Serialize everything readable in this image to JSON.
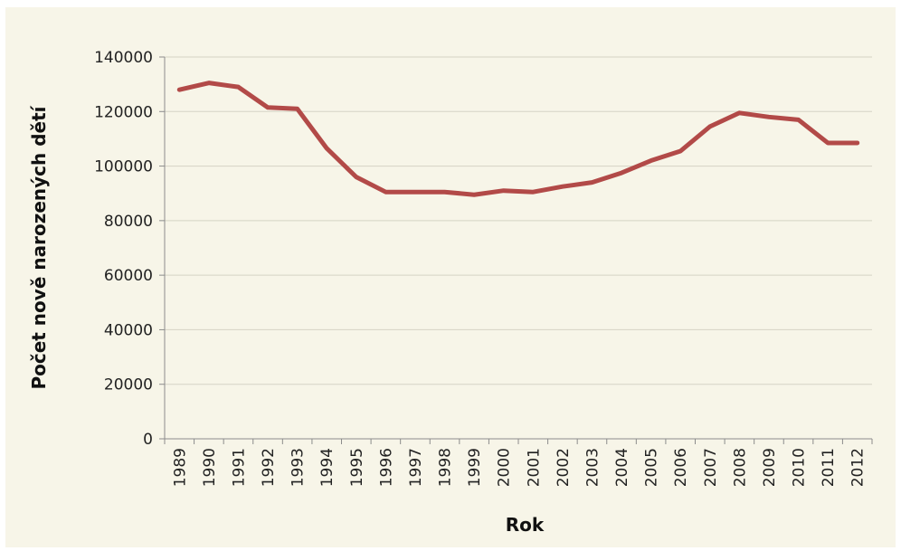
{
  "chart_data": {
    "type": "line",
    "title": "",
    "xlabel": "Rok",
    "ylabel": "Počet nově narozených dětí",
    "x": [
      1989,
      1990,
      1991,
      1992,
      1993,
      1994,
      1995,
      1996,
      1997,
      1998,
      1999,
      2000,
      2001,
      2002,
      2003,
      2004,
      2005,
      2006,
      2007,
      2008,
      2009,
      2010,
      2011,
      2012
    ],
    "categories": [
      "1989",
      "1990",
      "1991",
      "1992",
      "1993",
      "1994",
      "1995",
      "1996",
      "1997",
      "1998",
      "1999",
      "2000",
      "2001",
      "2002",
      "2003",
      "2004",
      "2005",
      "2006",
      "2007",
      "2008",
      "2009",
      "2010",
      "2011",
      "2012"
    ],
    "series": [
      {
        "values": [
          128000,
          130500,
          129000,
          121500,
          121000,
          106500,
          96000,
          90500,
          90500,
          90500,
          89500,
          91000,
          90500,
          92500,
          94000,
          97500,
          102000,
          105500,
          114500,
          119500,
          118000,
          117000,
          108500,
          108500
        ]
      }
    ],
    "ylim": [
      0,
      140000
    ],
    "yticks": [
      "0",
      "20000",
      "40000",
      "60000",
      "80000",
      "100000",
      "120000",
      "140000"
    ],
    "grid": true,
    "legend": "none",
    "colors": {
      "line": "#b24a48",
      "grid": "#d6d4c5",
      "background": "#f7f5e8",
      "axis": "#8c8c8c"
    }
  }
}
